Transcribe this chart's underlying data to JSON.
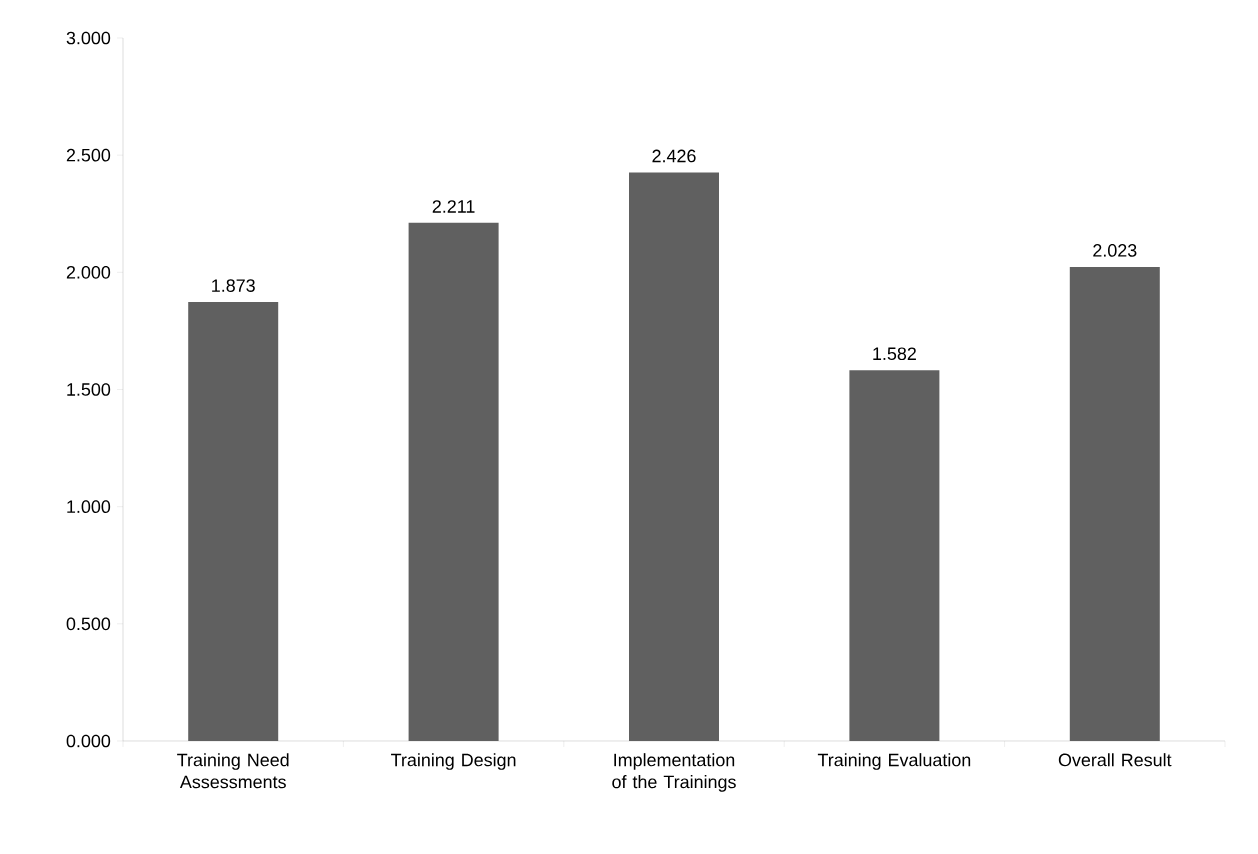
{
  "chart_data": {
    "type": "bar",
    "categories": [
      "Training Need Assessments",
      "Training Design",
      "Implementation of the Trainings",
      "Training Evaluation",
      "Overall Result"
    ],
    "values": [
      1.873,
      2.211,
      2.426,
      1.582,
      2.023
    ],
    "color": "#606060",
    "ylim": [
      0,
      3
    ],
    "yticks": [
      {
        "value": 0,
        "label": "0.000"
      },
      {
        "value": 0.5,
        "label": "0.500"
      },
      {
        "value": 1,
        "label": "1.000"
      },
      {
        "value": 1.5,
        "label": "1.500"
      },
      {
        "value": 2,
        "label": "2.000"
      },
      {
        "value": 2.5,
        "label": "2.500"
      },
      {
        "value": 3,
        "label": "3.000"
      }
    ],
    "data_labels": true
  }
}
